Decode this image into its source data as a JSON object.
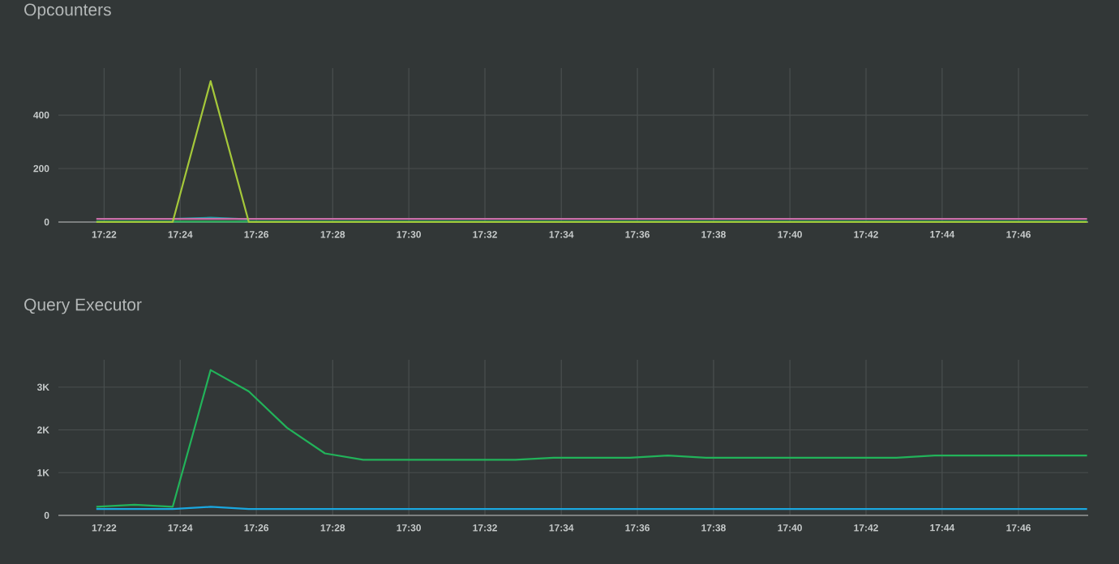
{
  "chart_data": [
    {
      "type": "line",
      "title": "Opcounters",
      "grid": true,
      "marker": "none",
      "line_style": "solid",
      "x": [
        17.3633,
        17.38,
        17.3967,
        17.4133,
        17.43,
        17.4467,
        17.4633,
        17.48,
        17.4967,
        17.5133,
        17.53,
        17.5467,
        17.5633,
        17.58,
        17.5967,
        17.6133,
        17.63,
        17.6467,
        17.6633,
        17.68,
        17.6967,
        17.7133,
        17.73,
        17.7467,
        17.7633,
        17.78,
        17.7967
      ],
      "xlim": [
        17.3467,
        17.7972
      ],
      "xticks": [
        {
          "value": 17.3667,
          "label": "17:22"
        },
        {
          "value": 17.4,
          "label": "17:24"
        },
        {
          "value": 17.4333,
          "label": "17:26"
        },
        {
          "value": 17.4667,
          "label": "17:28"
        },
        {
          "value": 17.5,
          "label": "17:30"
        },
        {
          "value": 17.5333,
          "label": "17:32"
        },
        {
          "value": 17.5667,
          "label": "17:34"
        },
        {
          "value": 17.6,
          "label": "17:36"
        },
        {
          "value": 17.6333,
          "label": "17:38"
        },
        {
          "value": 17.6667,
          "label": "17:40"
        },
        {
          "value": 17.7,
          "label": "17:42"
        },
        {
          "value": 17.7333,
          "label": "17:44"
        },
        {
          "value": 17.7667,
          "label": "17:46"
        }
      ],
      "ylim": [
        0,
        576
      ],
      "yticks": [
        0,
        200,
        400
      ],
      "series": [
        {
          "color": "#2bb05a",
          "values": [
            2,
            2,
            2,
            2,
            2,
            2,
            2,
            2,
            2,
            2,
            2,
            2,
            2,
            2,
            2,
            2,
            2,
            2,
            2,
            2,
            2,
            2,
            2,
            2,
            2,
            2,
            2
          ]
        },
        {
          "color": "#1fa0a8",
          "values": [
            null,
            null,
            12,
            16,
            10,
            null,
            null,
            null,
            null,
            null,
            null,
            null,
            null,
            null,
            null,
            null,
            null,
            null,
            null,
            null,
            null,
            null,
            null,
            null,
            null,
            null,
            null
          ]
        },
        {
          "color": "#c86fa8",
          "values": [
            12,
            12,
            12,
            12,
            12,
            12,
            12,
            12,
            12,
            12,
            12,
            12,
            12,
            12,
            12,
            12,
            12,
            12,
            12,
            12,
            12,
            12,
            12,
            12,
            12,
            12,
            12
          ]
        },
        {
          "color": "#a5c83a",
          "values": [
            0,
            0,
            0,
            527,
            0,
            0,
            0,
            0,
            0,
            0,
            0,
            0,
            0,
            0,
            0,
            0,
            0,
            0,
            0,
            0,
            0,
            0,
            0,
            0,
            0,
            0,
            0
          ]
        }
      ]
    },
    {
      "type": "line",
      "title": "Query Executor",
      "grid": true,
      "marker": "none",
      "line_style": "solid",
      "x": [
        17.3633,
        17.38,
        17.3967,
        17.4133,
        17.43,
        17.4467,
        17.4633,
        17.48,
        17.4967,
        17.5133,
        17.53,
        17.5467,
        17.5633,
        17.58,
        17.5967,
        17.6133,
        17.63,
        17.6467,
        17.6633,
        17.68,
        17.6967,
        17.7133,
        17.73,
        17.7467,
        17.7633,
        17.78,
        17.7967
      ],
      "xlim": [
        17.3467,
        17.7972
      ],
      "xticks": [
        {
          "value": 17.3667,
          "label": "17:22"
        },
        {
          "value": 17.4,
          "label": "17:24"
        },
        {
          "value": 17.4333,
          "label": "17:26"
        },
        {
          "value": 17.4667,
          "label": "17:28"
        },
        {
          "value": 17.5,
          "label": "17:30"
        },
        {
          "value": 17.5333,
          "label": "17:32"
        },
        {
          "value": 17.5667,
          "label": "17:34"
        },
        {
          "value": 17.6,
          "label": "17:36"
        },
        {
          "value": 17.6333,
          "label": "17:38"
        },
        {
          "value": 17.6667,
          "label": "17:40"
        },
        {
          "value": 17.7,
          "label": "17:42"
        },
        {
          "value": 17.7333,
          "label": "17:44"
        },
        {
          "value": 17.7667,
          "label": "17:46"
        }
      ],
      "ylim": [
        0,
        3640
      ],
      "yticks": [
        0,
        {
          "value": 1000,
          "label": "1K"
        },
        {
          "value": 2000,
          "label": "2K"
        },
        {
          "value": 3000,
          "label": "3K"
        }
      ],
      "series": [
        {
          "color": "#1aa7e0",
          "values": [
            150,
            150,
            150,
            200,
            150,
            150,
            150,
            150,
            150,
            150,
            150,
            150,
            150,
            150,
            150,
            150,
            150,
            150,
            150,
            150,
            150,
            150,
            150,
            150,
            150,
            150,
            150
          ]
        },
        {
          "color": "#22b35a",
          "values": [
            200,
            250,
            200,
            3400,
            2900,
            2050,
            1450,
            1300,
            1300,
            1300,
            1300,
            1300,
            1350,
            1350,
            1350,
            1400,
            1350,
            1350,
            1350,
            1350,
            1350,
            1350,
            1400,
            1400,
            1400,
            1400,
            1400
          ]
        }
      ]
    }
  ]
}
